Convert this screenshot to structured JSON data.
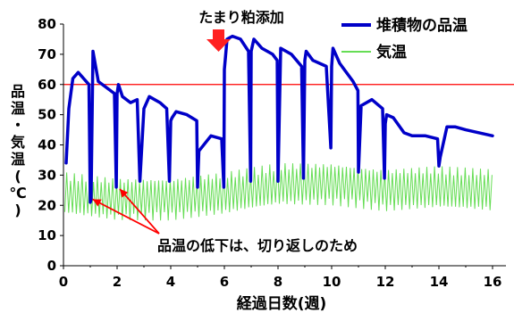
{
  "chart_data": {
    "type": "line",
    "title": "",
    "xlabel": "経過日数(週)",
    "ylabel": "品温・気温(℃)",
    "xlim": [
      0,
      16.5
    ],
    "ylim": [
      0,
      80
    ],
    "x_ticks": [
      0,
      2,
      4,
      6,
      8,
      10,
      12,
      14,
      16
    ],
    "y_ticks": [
      0,
      10,
      20,
      30,
      40,
      50,
      60,
      70,
      80
    ],
    "grid": false,
    "legend": "top-right",
    "reference_line": {
      "y": 60,
      "color": "#ff0000"
    },
    "series": [
      {
        "name": "堆積物の品温",
        "color": "#0000c8",
        "x": [
          0.1,
          0.2,
          0.35,
          0.55,
          0.75,
          0.95,
          1.0,
          1.03,
          1.1,
          1.3,
          1.6,
          1.9,
          1.97,
          2.0,
          2.05,
          2.2,
          2.5,
          2.75,
          2.85,
          3.0,
          3.05,
          3.2,
          3.6,
          3.85,
          3.95,
          4.0,
          4.05,
          4.2,
          4.6,
          4.97,
          5.0,
          5.05,
          5.5,
          5.9,
          5.98,
          6.0,
          6.1,
          6.3,
          6.6,
          6.9,
          6.98,
          7.0,
          7.1,
          7.4,
          7.8,
          7.97,
          8.0,
          8.1,
          8.5,
          8.88,
          8.95,
          9.0,
          9.05,
          9.3,
          9.55,
          9.8,
          9.97,
          10.0,
          10.05,
          10.3,
          10.8,
          10.98,
          11.0,
          11.1,
          11.5,
          11.9,
          11.97,
          12.0,
          12.05,
          12.3,
          12.7,
          13.0,
          13.5,
          13.95,
          14.0,
          14.05,
          14.3,
          14.6,
          15.0,
          15.5,
          16.0
        ],
        "values": [
          34,
          52,
          62,
          64,
          62,
          60,
          21,
          22,
          71,
          61,
          59,
          57,
          26,
          57,
          60,
          56,
          54,
          55,
          28,
          52,
          53,
          56,
          54,
          52,
          28,
          48,
          49,
          51,
          50,
          48,
          26,
          38,
          43,
          42,
          26,
          65,
          75,
          76,
          75,
          71,
          28,
          71,
          75,
          72,
          70,
          68,
          28,
          72,
          70,
          66,
          29,
          68,
          71,
          68,
          67,
          66,
          39,
          66,
          72,
          67,
          61,
          58,
          31,
          53,
          55,
          52,
          29,
          47,
          50,
          49,
          44,
          43,
          43,
          42,
          33,
          36,
          46,
          46,
          45,
          44,
          43
        ]
      },
      {
        "name": "気温",
        "color": "#66dd55",
        "x_range": [
          0.05,
          16.0
        ],
        "baseline": [
          [
            0,
            24
          ],
          [
            2,
            22
          ],
          [
            4,
            22
          ],
          [
            6,
            24
          ],
          [
            8,
            27
          ],
          [
            10,
            27
          ],
          [
            12,
            25
          ],
          [
            14,
            26
          ],
          [
            16,
            25
          ]
        ],
        "daily_amplitude": 7
      }
    ],
    "annotations": [
      {
        "text": "たまり粕添加",
        "position": "above x≈5.7 with downward arrow"
      },
      {
        "text": "品温の低下は、切り返しのため",
        "arrows_to": [
          1,
          2
        ]
      }
    ]
  }
}
